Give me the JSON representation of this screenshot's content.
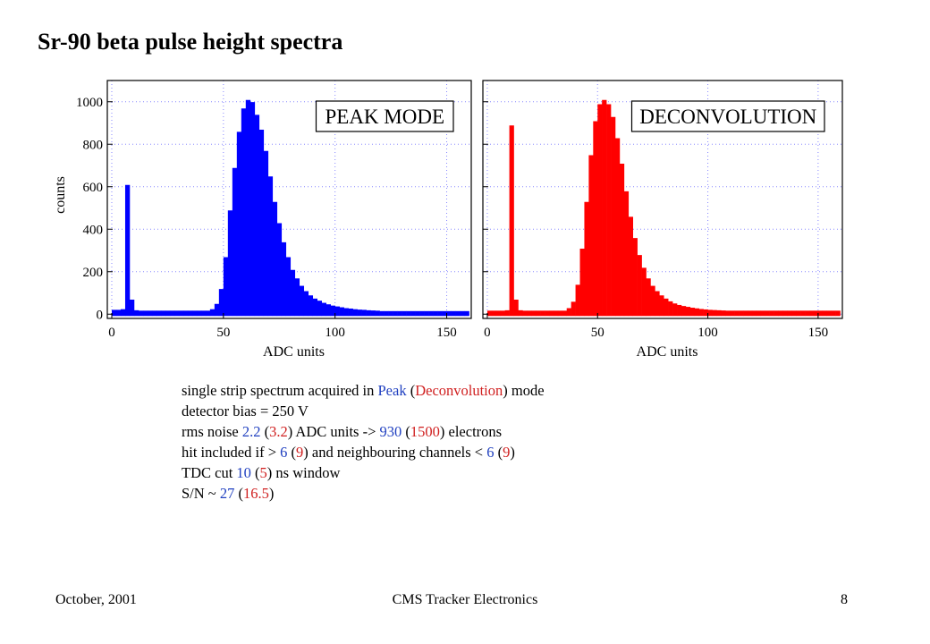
{
  "title": "Sr-90 beta pulse height spectra",
  "chart_data": [
    {
      "type": "histogram",
      "label": "PEAK MODE",
      "x_label": "ADC units",
      "y_label": "counts",
      "color": "#0000ff",
      "bins": [
        0,
        2,
        4,
        6,
        8,
        10,
        12,
        14,
        16,
        18,
        20,
        22,
        24,
        26,
        28,
        30,
        32,
        34,
        36,
        38,
        40,
        42,
        44,
        46,
        48,
        50,
        52,
        54,
        56,
        58,
        60,
        62,
        64,
        66,
        68,
        70,
        72,
        74,
        76,
        78,
        80,
        82,
        84,
        86,
        88,
        90,
        92,
        94,
        96,
        98,
        100,
        102,
        104,
        106,
        108,
        110,
        112,
        114,
        116,
        118,
        120,
        122,
        124,
        126,
        128,
        130,
        132,
        134,
        136,
        138,
        140,
        142,
        144,
        146,
        148,
        150,
        152,
        154,
        156,
        158,
        160
      ],
      "values": [
        12,
        12,
        15,
        600,
        60,
        10,
        8,
        8,
        8,
        8,
        8,
        8,
        8,
        8,
        8,
        8,
        8,
        8,
        8,
        8,
        8,
        8,
        15,
        40,
        110,
        260,
        480,
        680,
        850,
        960,
        1000,
        990,
        930,
        860,
        760,
        640,
        520,
        420,
        330,
        260,
        200,
        160,
        125,
        100,
        80,
        65,
        55,
        45,
        38,
        32,
        28,
        24,
        20,
        18,
        15,
        13,
        12,
        10,
        9,
        8,
        6,
        6,
        6,
        6,
        6,
        6,
        6,
        6,
        6,
        6,
        6,
        6,
        6,
        6,
        6,
        6,
        6,
        6,
        6,
        6
      ],
      "xlim": [
        -2,
        161
      ],
      "ylim": [
        -20,
        1100
      ],
      "xticks": [
        0,
        50,
        100,
        150
      ],
      "yticks": [
        0,
        200,
        400,
        600,
        800,
        1000
      ],
      "grid": true
    },
    {
      "type": "histogram",
      "label": "DECONVOLUTION",
      "x_label": "ADC units",
      "color": "#ff0000",
      "bins": [
        0,
        2,
        4,
        6,
        8,
        10,
        12,
        14,
        16,
        18,
        20,
        22,
        24,
        26,
        28,
        30,
        32,
        34,
        36,
        38,
        40,
        42,
        44,
        46,
        48,
        50,
        52,
        54,
        56,
        58,
        60,
        62,
        64,
        66,
        68,
        70,
        72,
        74,
        76,
        78,
        80,
        82,
        84,
        86,
        88,
        90,
        92,
        94,
        96,
        98,
        100,
        102,
        104,
        106,
        108,
        110,
        112,
        114,
        116,
        118,
        120,
        122,
        124,
        126,
        128,
        130,
        132,
        134,
        136,
        138,
        140,
        142,
        144,
        146,
        148,
        150,
        152,
        154,
        156,
        158,
        160
      ],
      "values": [
        8,
        8,
        8,
        8,
        10,
        880,
        60,
        10,
        8,
        8,
        8,
        8,
        8,
        8,
        8,
        8,
        8,
        8,
        20,
        50,
        130,
        300,
        520,
        740,
        900,
        980,
        1000,
        980,
        920,
        820,
        700,
        570,
        450,
        350,
        270,
        210,
        160,
        125,
        100,
        80,
        65,
        52,
        42,
        35,
        30,
        26,
        22,
        19,
        16,
        14,
        12,
        11,
        10,
        9,
        8,
        8,
        8,
        8,
        8,
        8,
        8,
        8,
        8,
        8,
        8,
        8,
        8,
        8,
        8,
        8,
        8,
        8,
        8,
        8,
        8,
        8,
        8,
        8,
        8,
        8
      ],
      "xlim": [
        -2,
        161
      ],
      "ylim": [
        -20,
        1100
      ],
      "xticks": [
        0,
        50,
        100,
        150
      ],
      "yticks": [
        0,
        200,
        400,
        600,
        800,
        1000
      ],
      "grid": true
    }
  ],
  "notes": [
    [
      {
        "text": "single strip spectrum acquired in "
      },
      {
        "text": "Peak",
        "color": "#2040c0"
      },
      {
        "text": " ("
      },
      {
        "text": "Deconvolution",
        "color": "#d02020"
      },
      {
        "text": ") mode"
      }
    ],
    [
      {
        "text": "detector bias = 250 V"
      }
    ],
    [
      {
        "text": "rms noise "
      },
      {
        "text": "2.2",
        "color": "#2040c0"
      },
      {
        "text": " ("
      },
      {
        "text": "3.2",
        "color": "#d02020"
      },
      {
        "text": ") ADC units -> "
      },
      {
        "text": "930",
        "color": "#2040c0"
      },
      {
        "text": " ("
      },
      {
        "text": "1500",
        "color": "#d02020"
      },
      {
        "text": ") electrons"
      }
    ],
    [
      {
        "text": "hit included if > "
      },
      {
        "text": "6",
        "color": "#2040c0"
      },
      {
        "text": " ("
      },
      {
        "text": "9",
        "color": "#d02020"
      },
      {
        "text": ") and neighbouring channels < "
      },
      {
        "text": "6",
        "color": "#2040c0"
      },
      {
        "text": " ("
      },
      {
        "text": "9",
        "color": "#d02020"
      },
      {
        "text": ")"
      }
    ],
    [
      {
        "text": "TDC cut "
      },
      {
        "text": "10",
        "color": "#2040c0"
      },
      {
        "text": " ("
      },
      {
        "text": "5",
        "color": "#d02020"
      },
      {
        "text": ") ns window"
      }
    ],
    [
      {
        "text": "S/N ~ "
      },
      {
        "text": "27",
        "color": "#2040c0"
      },
      {
        "text": " ("
      },
      {
        "text": "16.5",
        "color": "#d02020"
      },
      {
        "text": ")"
      }
    ]
  ],
  "footer": {
    "left": "October, 2001",
    "center": "CMS Tracker Electronics",
    "right": "8"
  }
}
